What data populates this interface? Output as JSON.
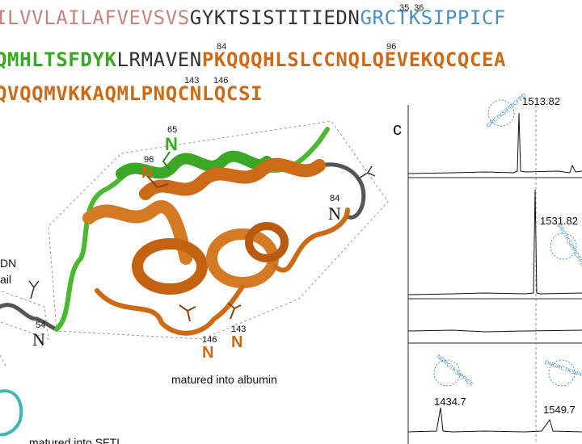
{
  "colors": {
    "signal": "#c4857e",
    "neutral": "#333333",
    "blue": "#4a90c6",
    "green": "#3aa824",
    "orange": "#cc6a16",
    "orange_dark": "#8a4208",
    "grey_loop": "#555555"
  },
  "sequence": {
    "line1": {
      "signal": "ILVVLAILAFVEVSVS",
      "middle": "GYKTSISTITIEDN",
      "blue": "GRCTKSIPPICF"
    },
    "line2": {
      "green": "QMHLTSFDYK",
      "middle": "LRMAVEN",
      "orange": "PKQQQHLSLCCNQLQEVEKQCQCEA"
    },
    "line3": {
      "orange": "QVQQMVKKAQMLPNQCNLQCSI"
    },
    "numbers": {
      "n35": "35",
      "n36": "36",
      "n84": "84",
      "n96": "96",
      "n143": "143",
      "n146": "146"
    }
  },
  "structure": {
    "label_65_num": "65",
    "label_65_N": "N",
    "label_96_num": "96",
    "label_96_N": "N",
    "label_84_num": "84",
    "label_84_N": "N",
    "label_54_num": "54",
    "label_54_N": "N",
    "label_146_num": "146",
    "label_146_N": "N",
    "label_143_num": "143",
    "label_143_N": "N",
    "tail_label_line1": "DN",
    "tail_label_line2": "ail",
    "caption_albumin": "matured into albumin",
    "caption_cut": "matured into SFTI"
  },
  "panel_c": {
    "label": "c",
    "peaks": [
      {
        "mz": "1513.82",
        "ring": "GRCTKSIPPICFPD"
      },
      {
        "mz": "1531.82",
        "ring": "GRCTKSIPPICFPD"
      },
      {
        "mz": "1434.7",
        "ring": "NGRCTKSIPPICF"
      },
      {
        "mz": "1549.7",
        "ring": "DNGRCTKSIPPICF"
      }
    ]
  }
}
